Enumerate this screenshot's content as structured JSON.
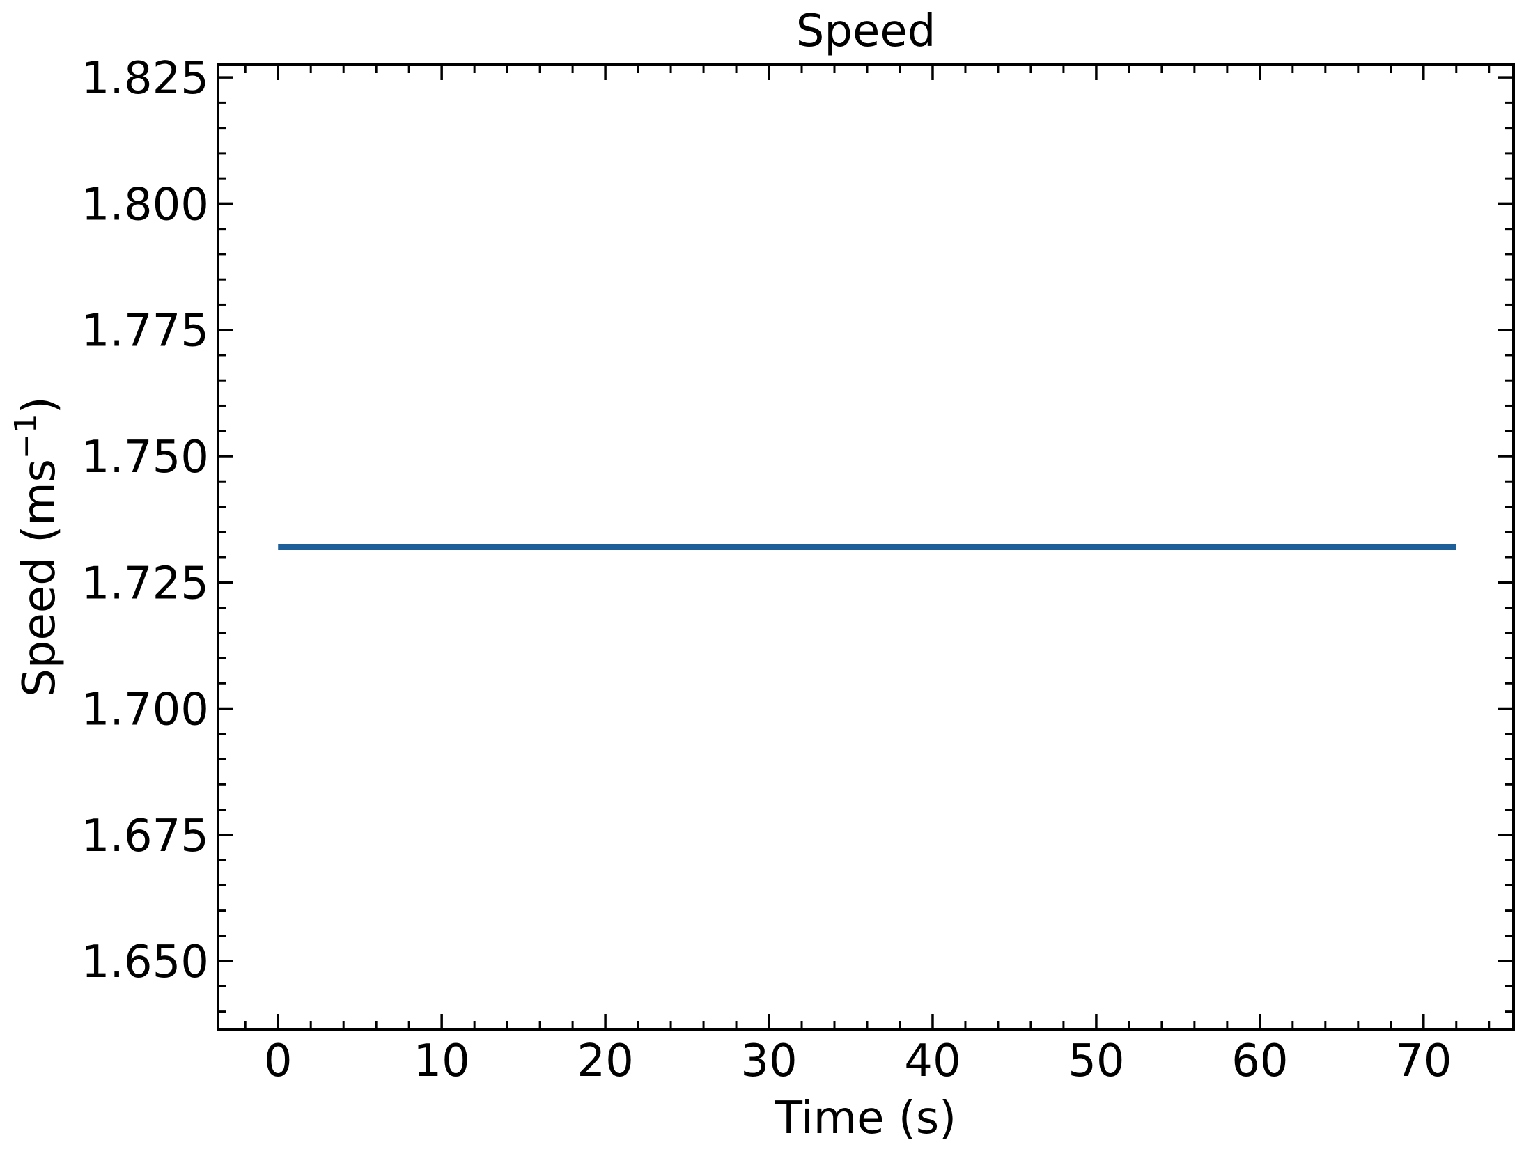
{
  "chart_data": {
    "type": "line",
    "title": "Speed",
    "xlabel": "Time (s)",
    "ylabel_main": "Speed (ms",
    "ylabel_sup": "−1",
    "ylabel_close": ")",
    "xlim": [
      -3.67,
      75.5
    ],
    "ylim": [
      1.6365,
      1.8275
    ],
    "x_ticks": [
      0,
      10,
      20,
      30,
      40,
      50,
      60,
      70
    ],
    "x_tick_labels": [
      "0",
      "10",
      "20",
      "30",
      "40",
      "50",
      "60",
      "70"
    ],
    "x_minor_step": 2,
    "y_ticks": [
      1.65,
      1.675,
      1.7,
      1.725,
      1.75,
      1.775,
      1.8,
      1.825
    ],
    "y_tick_labels": [
      "1.650",
      "1.675",
      "1.700",
      "1.725",
      "1.750",
      "1.775",
      "1.800",
      "1.825"
    ],
    "y_minor_step": 0.005,
    "grid": false,
    "series": [
      {
        "color": "#1f5f99",
        "x": [
          0,
          72
        ],
        "y": [
          1.732,
          1.732
        ]
      }
    ]
  }
}
